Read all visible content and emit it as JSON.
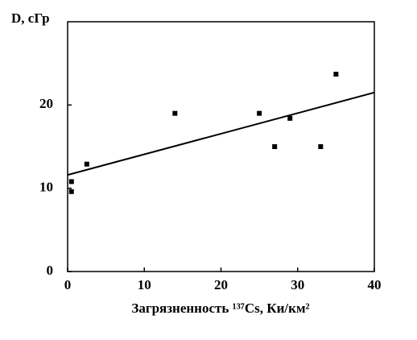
{
  "chart_data": {
    "type": "scatter",
    "ylabel": "D, сГр",
    "xlabel": "Загрязненность ¹³⁷Cs, Ки/км²",
    "x": [
      0.5,
      0.5,
      2.5,
      14,
      25,
      27,
      29,
      33,
      35
    ],
    "values": [
      10.8,
      9.6,
      12.9,
      19.0,
      19.0,
      15.0,
      18.4,
      15.0,
      23.7
    ],
    "color": "#000000",
    "trend": {
      "x": [
        0,
        40
      ],
      "y": [
        11.6,
        21.5
      ]
    },
    "xlim": [
      0,
      40
    ],
    "xticks": [
      0,
      10,
      20,
      30,
      40
    ],
    "ylim": [
      0,
      30
    ],
    "yticks": [
      0,
      10,
      20
    ]
  }
}
